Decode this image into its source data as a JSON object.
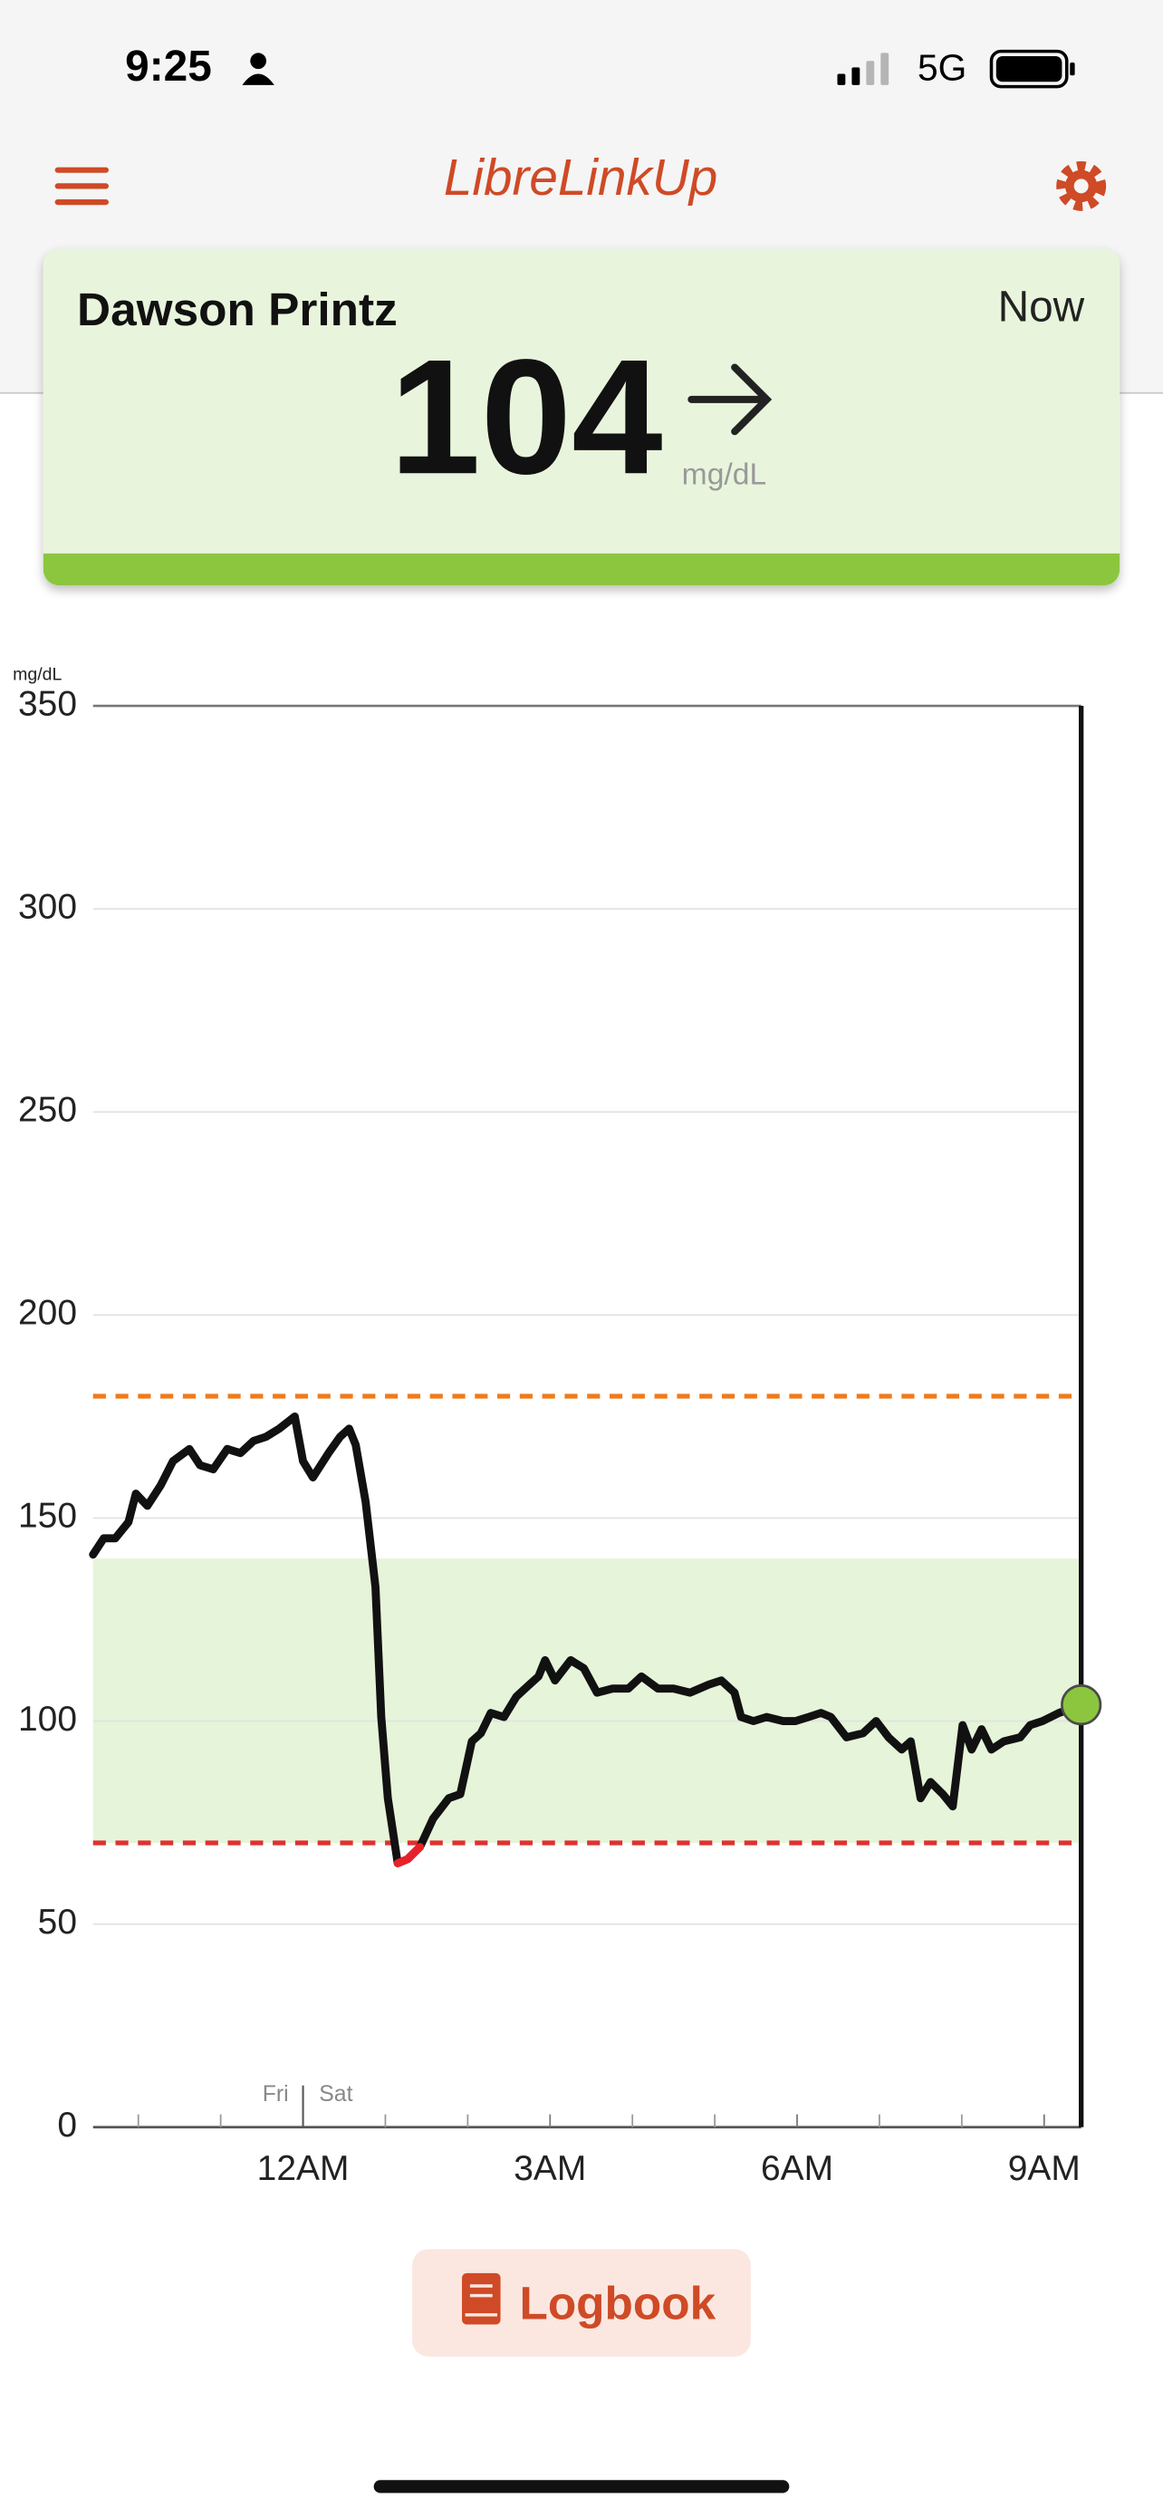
{
  "status_bar": {
    "time": "9:25",
    "network": "5G"
  },
  "header": {
    "title": "LibreLinkUp"
  },
  "card": {
    "name": "Dawson Printz",
    "time": "Now",
    "value": 104,
    "unit": "mg/dL"
  },
  "chart_data": {
    "type": "line",
    "y_label": "mg/dL",
    "x": [
      -2.55,
      -2.42,
      -2.28,
      -2.12,
      -2.03,
      -1.89,
      -1.73,
      -1.58,
      -1.38,
      -1.25,
      -1.09,
      -0.92,
      -0.76,
      -0.6,
      -0.45,
      -0.29,
      -0.1,
      0,
      0.12,
      0.31,
      0.45,
      0.56,
      0.64,
      0.76,
      0.88,
      0.95,
      1.03,
      1.15,
      1.27,
      1.42,
      1.58,
      1.77,
      1.91,
      2.05,
      2.16,
      2.28,
      2.44,
      2.59,
      2.75,
      2.86,
      2.94,
      3.06,
      3.25,
      3.41,
      3.57,
      3.76,
      3.95,
      4.11,
      4.31,
      4.5,
      4.7,
      4.93,
      5.08,
      5.24,
      5.32,
      5.47,
      5.63,
      5.83,
      5.98,
      6.14,
      6.29,
      6.41,
      6.6,
      6.8,
      6.96,
      7.11,
      7.27,
      7.38,
      7.5,
      7.62,
      7.77,
      7.89,
      8.01,
      8.12,
      8.24,
      8.36,
      8.51,
      8.71,
      8.83,
      8.98,
      9.18,
      9.45
    ],
    "values": [
      141,
      145,
      145,
      149,
      156,
      153,
      158,
      164,
      167,
      163,
      162,
      167,
      166,
      169,
      170,
      172,
      175,
      164,
      160,
      166,
      170,
      172,
      168,
      154,
      133,
      101,
      81,
      65,
      66,
      69,
      76,
      81,
      82,
      95,
      97,
      102,
      101,
      106,
      109,
      111,
      115,
      110,
      115,
      113,
      107,
      108,
      108,
      111,
      108,
      108,
      107,
      109,
      110,
      107,
      101,
      100,
      101,
      100,
      100,
      101,
      102,
      101,
      96,
      97,
      100,
      96,
      93,
      95,
      81,
      85,
      82,
      79,
      99,
      93,
      98,
      93,
      95,
      96,
      99,
      100,
      102,
      104
    ],
    "color": "#111111",
    "low_color": "#e8202a",
    "current_color": "#8cc63f",
    "xlim": [
      -2.55,
      9.45
    ],
    "xticks": [
      {
        "value": 0,
        "label": "12AM"
      },
      {
        "value": 3,
        "label": "3AM"
      },
      {
        "value": 6,
        "label": "6AM"
      },
      {
        "value": 9,
        "label": "9AM"
      }
    ],
    "x_minor_ticks": [
      -2,
      -1,
      1,
      2,
      4,
      5,
      7,
      8
    ],
    "day_labels": [
      "Fri",
      "Sat"
    ],
    "day_divider": 0,
    "ylim": [
      0,
      350
    ],
    "yticks": [
      0,
      50,
      100,
      150,
      200,
      250,
      300,
      350
    ],
    "grid": true,
    "target_range": [
      70,
      140
    ],
    "target_color": "#e6f4d9",
    "high_threshold": 180,
    "high_threshold_color": "#f07a1a",
    "low_threshold": 70,
    "low_threshold_color": "#e03030"
  },
  "button": {
    "label": "Logbook"
  }
}
